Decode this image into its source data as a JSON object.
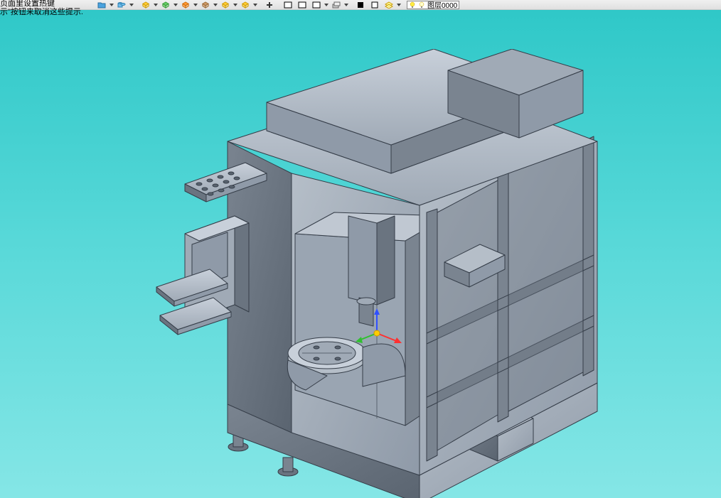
{
  "hints": {
    "line1": "页面里设置热键",
    "line2": "示\"按钮来取消这些提示."
  },
  "toolbar": {
    "icons": [
      {
        "name": "folder-icon",
        "fill": "#4aa3df",
        "stroke": "#2a70a0"
      },
      {
        "name": "cylinders-icon",
        "fill": "#6fbfef",
        "stroke": "#3080b0"
      },
      {
        "name": "cube-icon",
        "fill": "#ffcc33",
        "stroke": "#cc9900"
      },
      {
        "name": "box-icon",
        "fill": "#66cc66",
        "stroke": "#339933"
      },
      {
        "name": "box2-icon",
        "fill": "#ff9933",
        "stroke": "#cc6600"
      },
      {
        "name": "plane-icon",
        "fill": "#cc9966",
        "stroke": "#996633"
      },
      {
        "name": "slab-icon",
        "fill": "#ffcc33",
        "stroke": "#cc9900"
      },
      {
        "name": "slab2-icon",
        "fill": "#ffcc33",
        "stroke": "#cc9900"
      },
      {
        "name": "plus-icon",
        "fill": "#444",
        "stroke": "#000"
      },
      {
        "name": "rect1-icon",
        "fill": "#fff",
        "stroke": "#000"
      },
      {
        "name": "rect2-icon",
        "fill": "#fff",
        "stroke": "#000"
      },
      {
        "name": "rect3-icon",
        "fill": "#fff",
        "stroke": "#000"
      },
      {
        "name": "stack-icon",
        "fill": "#ccc",
        "stroke": "#666"
      },
      {
        "name": "black-sq-icon",
        "fill": "#000",
        "stroke": "#000"
      },
      {
        "name": "white-sq-icon",
        "fill": "#fff",
        "stroke": "#000"
      },
      {
        "name": "layer-icon",
        "fill": "#ffff99",
        "stroke": "#cc9900"
      }
    ],
    "layer_label": "图层0000",
    "bulb_on_color": "#ffee44",
    "bulb_off_color": "#ffffaa"
  },
  "viewport": {
    "bg_top": "#2fc8c8",
    "bg_mid": "#5ad9d9",
    "bg_bot": "#85e6e6",
    "model_body": "#8f9aa8",
    "model_edge": "#353d48",
    "model_light": "#b5bec8",
    "model_dark": "#6a7480",
    "model_darker": "#4a525c"
  },
  "axis": {
    "x_color": "#ff3030",
    "y_color": "#30c030",
    "z_color": "#3050ff",
    "origin_color": "#ffcc00"
  }
}
